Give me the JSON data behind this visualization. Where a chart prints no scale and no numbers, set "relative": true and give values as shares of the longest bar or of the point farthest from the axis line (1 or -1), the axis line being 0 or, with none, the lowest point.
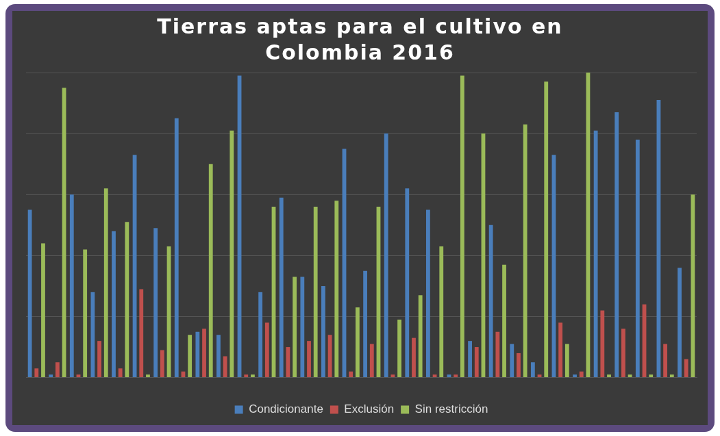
{
  "chart_data": {
    "type": "bar",
    "title": "Tierras aptas para el cultivo en Colombia 2016",
    "relative": true,
    "grid": "y",
    "legend": "bottom",
    "categories": [
      null,
      null,
      null,
      null,
      null,
      null,
      null,
      null,
      null,
      null,
      null,
      null,
      null,
      null,
      null,
      null,
      null,
      null,
      null,
      null,
      null,
      null,
      null,
      null,
      null,
      null,
      null,
      null,
      null,
      null,
      null,
      null
    ],
    "series": [
      {
        "name": "Condicionante",
        "color": "#4a7ebb",
        "values": [
          0.55,
          0.01,
          0.6,
          0.28,
          0.48,
          0.73,
          0.49,
          0.85,
          0.15,
          0.14,
          0.99,
          0.28,
          0.59,
          0.33,
          0.3,
          0.75,
          0.35,
          0.8,
          0.62,
          0.55,
          0.01,
          0.12,
          0.5,
          0.11,
          0.05,
          0.73,
          0.01,
          0.81,
          0.87,
          0.78,
          0.91,
          0.36
        ]
      },
      {
        "name": "Exclusión",
        "color": "#c0504d",
        "values": [
          0.03,
          0.05,
          0.01,
          0.12,
          0.03,
          0.29,
          0.09,
          0.02,
          0.16,
          0.07,
          0.01,
          0.18,
          0.1,
          0.12,
          0.14,
          0.02,
          0.11,
          0.01,
          0.13,
          0.01,
          0.01,
          0.1,
          0.15,
          0.08,
          0.01,
          0.18,
          0.02,
          0.22,
          0.16,
          0.24,
          0.11,
          0.06
        ]
      },
      {
        "name": "Sin restricción",
        "color": "#9bbb59",
        "values": [
          0.44,
          0.95,
          0.42,
          0.62,
          0.51,
          0.01,
          0.43,
          0.14,
          0.7,
          0.81,
          0.01,
          0.56,
          0.33,
          0.56,
          0.58,
          0.23,
          0.56,
          0.19,
          0.27,
          0.43,
          0.99,
          0.8,
          0.37,
          0.83,
          0.97,
          0.11,
          1,
          0.01,
          0.01,
          0.01,
          0.01,
          0.6
        ]
      }
    ]
  }
}
